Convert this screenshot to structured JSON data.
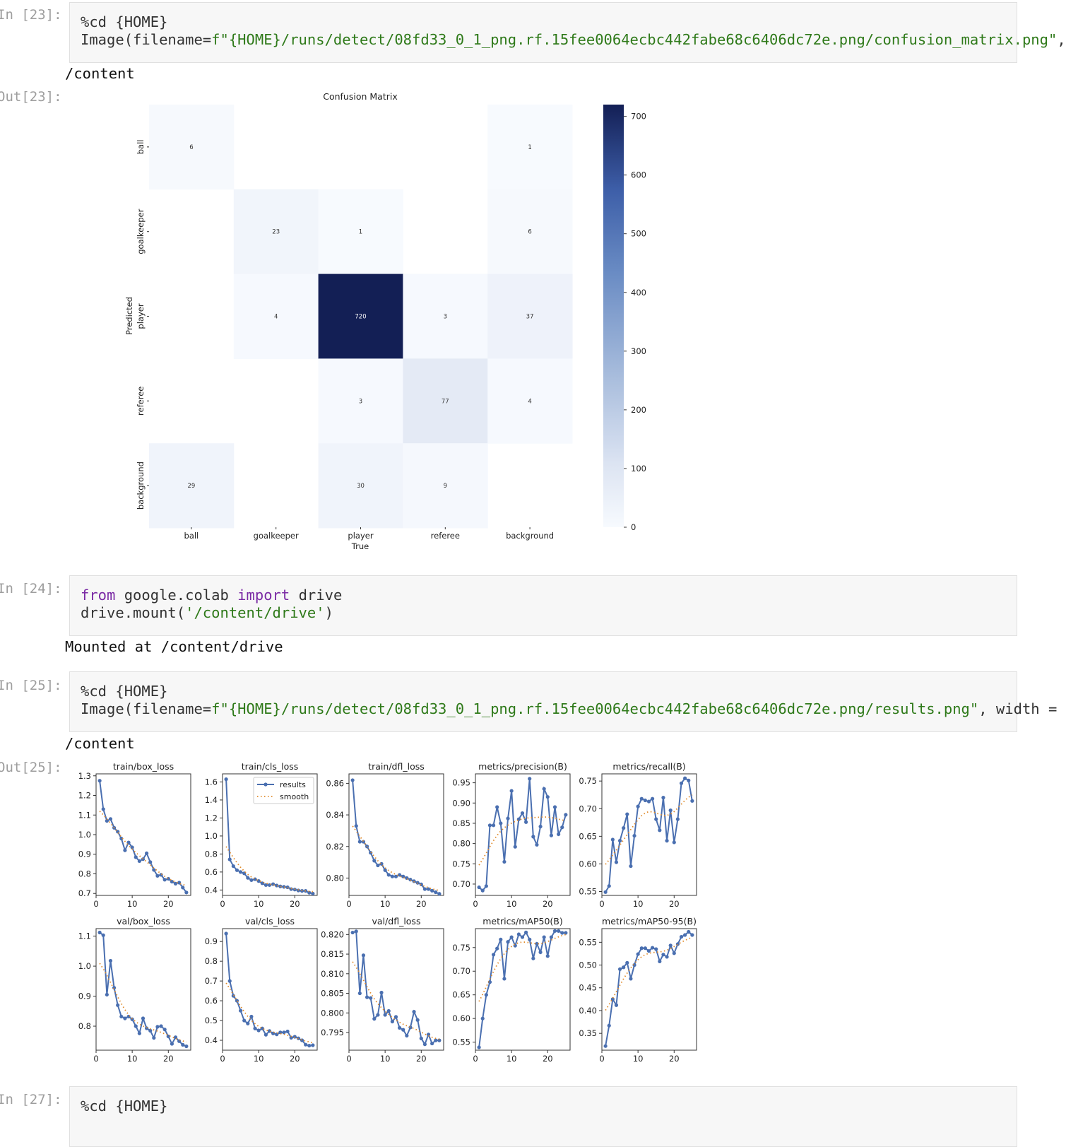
{
  "cells": [
    {
      "prompt": "In [23]:",
      "lines": [
        [
          {
            "t": "%cd {HOME}",
            "c": "plain"
          }
        ],
        [
          {
            "t": "Image(filename=",
            "c": "plain"
          },
          {
            "t": "f\"{HOME}/runs/detect/08fd33_0_1_png.rf.15fee0064ecbc442fabe68c6406dc72e.png/confusion_matrix.png\"",
            "c": "str"
          },
          {
            "t": ",",
            "c": "plain"
          }
        ]
      ],
      "output": "/content",
      "out_prompt": "Out[23]:"
    },
    {
      "prompt": "In [24]:",
      "lines": [
        [
          {
            "t": "from",
            "c": "kw"
          },
          {
            "t": " google.colab ",
            "c": "plain"
          },
          {
            "t": "import",
            "c": "kw"
          },
          {
            "t": " drive",
            "c": "plain"
          }
        ],
        [
          {
            "t": "drive.mount(",
            "c": "plain"
          },
          {
            "t": "'/content/drive'",
            "c": "str"
          },
          {
            "t": ")",
            "c": "plain"
          }
        ]
      ],
      "output": "Mounted at /content/drive"
    },
    {
      "prompt": "In [25]:",
      "lines": [
        [
          {
            "t": "%cd {HOME}",
            "c": "plain"
          }
        ],
        [
          {
            "t": "Image(filename=",
            "c": "plain"
          },
          {
            "t": "f\"{HOME}/runs/detect/08fd33_0_1_png.rf.15fee0064ecbc442fabe68c6406dc72e.png/results.png\"",
            "c": "str"
          },
          {
            "t": ", width =",
            "c": "plain"
          }
        ]
      ],
      "output": "/content",
      "out_prompt": "Out[25]:"
    },
    {
      "prompt": "In [27]:",
      "lines": [
        [
          {
            "t": "%cd {HOME}",
            "c": "plain"
          }
        ]
      ]
    }
  ],
  "chart_data": [
    {
      "type": "heatmap",
      "title": "Confusion Matrix",
      "xlabel": "True",
      "ylabel": "Predicted",
      "x_categories": [
        "ball",
        "goalkeeper",
        "player",
        "referee",
        "background"
      ],
      "y_categories": [
        "ball",
        "goalkeeper",
        "player",
        "referee",
        "background"
      ],
      "values": [
        [
          6,
          0,
          0,
          0,
          1
        ],
        [
          0,
          23,
          1,
          0,
          6
        ],
        [
          0,
          4,
          720,
          3,
          37
        ],
        [
          0,
          0,
          3,
          77,
          4
        ],
        [
          29,
          0,
          30,
          9,
          0
        ]
      ],
      "colorbar": {
        "range": [
          0,
          720
        ],
        "ticks": [
          0,
          100,
          200,
          300,
          400,
          500,
          600,
          700
        ]
      },
      "colors": {
        "low": "#f7fafe",
        "high": "#131f55"
      }
    },
    {
      "type": "line",
      "legend": {
        "entries": [
          "results",
          "smooth"
        ],
        "placement": "upper-right of train/cls_loss"
      },
      "colors": {
        "results": "#4a6fb0",
        "smooth": "#e08a2a"
      },
      "x": [
        1,
        2,
        3,
        4,
        5,
        6,
        7,
        8,
        9,
        10,
        11,
        12,
        13,
        14,
        15,
        16,
        17,
        18,
        19,
        20,
        21,
        22,
        23,
        24,
        25
      ],
      "xticks": [
        0,
        10,
        20
      ],
      "xlim": [
        0,
        26.2
      ],
      "panels": [
        {
          "title": "train/box_loss",
          "ylim": [
            0.69,
            1.31
          ],
          "yticks": [
            "0.7",
            "0.8",
            "0.9",
            "1.0",
            "1.1",
            "1.2",
            "1.3"
          ],
          "values": [
            1.275,
            1.13,
            1.07,
            1.08,
            1.035,
            1.015,
            0.98,
            0.92,
            0.96,
            0.935,
            0.885,
            0.865,
            0.875,
            0.905,
            0.86,
            0.82,
            0.79,
            0.795,
            0.77,
            0.775,
            0.76,
            0.75,
            0.755,
            0.73,
            0.705
          ]
        },
        {
          "title": "train/cls_loss",
          "ylim": [
            0.34,
            1.69
          ],
          "yticks": [
            "0.4",
            "0.6",
            "0.8",
            "1.0",
            "1.2",
            "1.4",
            "1.6"
          ],
          "values": [
            1.63,
            0.74,
            0.665,
            0.62,
            0.6,
            0.585,
            0.535,
            0.51,
            0.52,
            0.5,
            0.475,
            0.455,
            0.455,
            0.465,
            0.45,
            0.44,
            0.435,
            0.43,
            0.41,
            0.405,
            0.395,
            0.39,
            0.39,
            0.37,
            0.36
          ]
        },
        {
          "title": "train/dfl_loss",
          "ylim": [
            0.789,
            0.866
          ],
          "yticks": [
            "0.80",
            "0.82",
            "0.84",
            "0.86"
          ],
          "values": [
            0.862,
            0.833,
            0.823,
            0.823,
            0.82,
            0.816,
            0.811,
            0.808,
            0.809,
            0.805,
            0.802,
            0.801,
            0.801,
            0.802,
            0.801,
            0.8,
            0.799,
            0.798,
            0.797,
            0.796,
            0.793,
            0.793,
            0.792,
            0.791,
            0.79
          ]
        },
        {
          "title": "metrics/precision(B)",
          "ylim": [
            0.672,
            0.972
          ],
          "yticks": [
            "0.70",
            "0.75",
            "0.80",
            "0.85",
            "0.90",
            "0.95"
          ],
          "values": [
            0.692,
            0.684,
            0.695,
            0.845,
            0.845,
            0.89,
            0.85,
            0.755,
            0.862,
            0.93,
            0.792,
            0.86,
            0.875,
            0.853,
            0.96,
            0.817,
            0.797,
            0.842,
            0.935,
            0.915,
            0.82,
            0.89,
            0.823,
            0.84,
            0.871
          ]
        },
        {
          "title": "metrics/recall(B)",
          "ylim": [
            0.543,
            0.763
          ],
          "yticks": [
            "0.55",
            "0.60",
            "0.65",
            "0.70",
            "0.75"
          ],
          "values": [
            0.549,
            0.56,
            0.644,
            0.603,
            0.642,
            0.665,
            0.69,
            0.596,
            0.651,
            0.704,
            0.718,
            0.715,
            0.713,
            0.718,
            0.681,
            0.661,
            0.72,
            0.642,
            0.697,
            0.639,
            0.681,
            0.746,
            0.755,
            0.751,
            0.714
          ]
        },
        {
          "title": "val/box_loss",
          "ylim": [
            0.72,
            1.125
          ],
          "yticks": [
            "0.8",
            "0.9",
            "1.0",
            "1.1"
          ],
          "values": [
            1.112,
            1.103,
            0.905,
            1.018,
            0.928,
            0.87,
            0.832,
            0.826,
            0.832,
            0.823,
            0.8,
            0.776,
            0.826,
            0.793,
            0.785,
            0.761,
            0.798,
            0.8,
            0.789,
            0.766,
            0.741,
            0.763,
            0.75,
            0.738,
            0.733
          ]
        },
        {
          "title": "val/cls_loss",
          "ylim": [
            0.35,
            0.965
          ],
          "yticks": [
            "0.4",
            "0.5",
            "0.6",
            "0.7",
            "0.8",
            "0.9"
          ],
          "values": [
            0.94,
            0.7,
            0.625,
            0.6,
            0.55,
            0.5,
            0.485,
            0.52,
            0.46,
            0.45,
            0.46,
            0.428,
            0.447,
            0.435,
            0.43,
            0.44,
            0.44,
            0.445,
            0.413,
            0.418,
            0.41,
            0.4,
            0.378,
            0.373,
            0.375
          ]
        },
        {
          "title": "val/dfl_loss",
          "ylim": [
            0.7905,
            0.8215
          ],
          "yticks": [
            "0.795",
            "0.800",
            "0.805",
            "0.810",
            "0.815",
            "0.820"
          ],
          "values": [
            0.8205,
            0.8208,
            0.805,
            0.8147,
            0.804,
            0.8038,
            0.7985,
            0.7995,
            0.8052,
            0.7995,
            0.8005,
            0.7978,
            0.799,
            0.7962,
            0.7957,
            0.7942,
            0.7963,
            0.8003,
            0.7982,
            0.7935,
            0.792,
            0.7945,
            0.7922,
            0.793,
            0.793
          ]
        },
        {
          "title": "metrics/mAP50(B)",
          "ylim": [
            0.533,
            0.79
          ],
          "yticks": [
            "0.55",
            "0.60",
            "0.65",
            "0.70",
            "0.75"
          ],
          "values": [
            0.539,
            0.6,
            0.65,
            0.677,
            0.735,
            0.748,
            0.767,
            0.684,
            0.762,
            0.772,
            0.754,
            0.778,
            0.772,
            0.782,
            0.767,
            0.727,
            0.758,
            0.74,
            0.772,
            0.732,
            0.772,
            0.785,
            0.785,
            0.781,
            0.781
          ]
        },
        {
          "title": "metrics/mAP50-95(B)",
          "ylim": [
            0.313,
            0.58
          ],
          "yticks": [
            "0.35",
            "0.40",
            "0.45",
            "0.50",
            "0.55"
          ],
          "values": [
            0.322,
            0.367,
            0.425,
            0.412,
            0.491,
            0.495,
            0.505,
            0.47,
            0.5,
            0.524,
            0.537,
            0.537,
            0.531,
            0.538,
            0.535,
            0.508,
            0.523,
            0.518,
            0.543,
            0.526,
            0.546,
            0.562,
            0.566,
            0.573,
            0.566
          ]
        }
      ]
    }
  ]
}
